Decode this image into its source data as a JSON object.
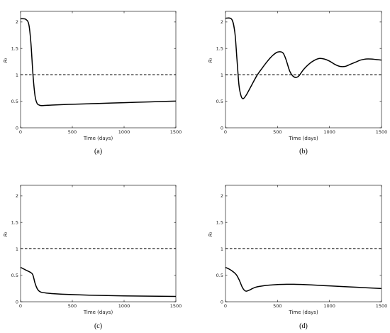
{
  "chart_data": [
    {
      "type": "line",
      "panel_label": "(a)",
      "xlabel": "Time (days)",
      "ylabel": "Rₜ",
      "xlim": [
        0,
        1500
      ],
      "ylim": [
        0,
        2.2
      ],
      "xticks": [
        "0",
        "500",
        "1000",
        "1500"
      ],
      "yticks": [
        "0",
        "0.5",
        "1",
        "1.5",
        "2"
      ],
      "reference_line": {
        "y": 1,
        "style": "dashed"
      },
      "series": [
        {
          "x": [
            0,
            50,
            80,
            100,
            120,
            140,
            160,
            180,
            200,
            250,
            300,
            500,
            750,
            1000,
            1250,
            1500
          ],
          "values": [
            2.06,
            2.05,
            1.95,
            1.6,
            1.0,
            0.6,
            0.46,
            0.43,
            0.42,
            0.425,
            0.43,
            0.445,
            0.46,
            0.475,
            0.49,
            0.505
          ]
        }
      ]
    },
    {
      "type": "line",
      "panel_label": "(b)",
      "xlabel": "Time (days)",
      "ylabel": "Rₜ",
      "xlim": [
        0,
        1500
      ],
      "ylim": [
        0,
        2.2
      ],
      "xticks": [
        "0",
        "500",
        "1000",
        "1500"
      ],
      "yticks": [
        "0",
        "0.5",
        "1",
        "1.5",
        "2"
      ],
      "reference_line": {
        "y": 1,
        "style": "dashed"
      },
      "series": [
        {
          "x": [
            0,
            60,
            90,
            110,
            130,
            150,
            170,
            200,
            250,
            300,
            350,
            400,
            450,
            500,
            550,
            580,
            620,
            660,
            700,
            750,
            800,
            850,
            900,
            950,
            1000,
            1050,
            1100,
            1150,
            1200,
            1250,
            1300,
            1350,
            1400,
            1450,
            1500
          ],
          "values": [
            2.07,
            2.05,
            1.8,
            1.3,
            0.8,
            0.6,
            0.55,
            0.62,
            0.8,
            0.98,
            1.12,
            1.25,
            1.36,
            1.43,
            1.42,
            1.3,
            1.06,
            0.96,
            0.97,
            1.1,
            1.2,
            1.27,
            1.31,
            1.3,
            1.26,
            1.2,
            1.16,
            1.16,
            1.2,
            1.24,
            1.28,
            1.3,
            1.3,
            1.29,
            1.28
          ]
        }
      ]
    },
    {
      "type": "line",
      "panel_label": "(c)",
      "xlabel": "Time (days)",
      "ylabel": "Rₜ",
      "xlim": [
        0,
        1500
      ],
      "ylim": [
        0,
        2.2
      ],
      "xticks": [
        "0",
        "500",
        "1000",
        "1500"
      ],
      "yticks": [
        "0",
        "0.5",
        "1",
        "1.5",
        "2"
      ],
      "reference_line": {
        "y": 1,
        "style": "dashed"
      },
      "series": [
        {
          "x": [
            0,
            50,
            100,
            120,
            140,
            160,
            180,
            200,
            250,
            300,
            500,
            750,
            1000,
            1250,
            1500
          ],
          "values": [
            0.65,
            0.6,
            0.55,
            0.5,
            0.35,
            0.25,
            0.2,
            0.18,
            0.165,
            0.155,
            0.135,
            0.12,
            0.11,
            0.105,
            0.1
          ]
        }
      ]
    },
    {
      "type": "line",
      "panel_label": "(d)",
      "xlabel": "Time (days)",
      "ylabel": "Rₜ",
      "xlim": [
        0,
        1500
      ],
      "ylim": [
        0,
        2.2
      ],
      "xticks": [
        "0",
        "500",
        "1000",
        "1500"
      ],
      "yticks": [
        "0",
        "0.5",
        "1",
        "1.5",
        "2"
      ],
      "reference_line": {
        "y": 1,
        "style": "dashed"
      },
      "series": [
        {
          "x": [
            0,
            50,
            100,
            130,
            160,
            180,
            200,
            230,
            260,
            300,
            400,
            500,
            600,
            650,
            750,
            900,
            1000,
            1200,
            1400,
            1500
          ],
          "values": [
            0.65,
            0.6,
            0.52,
            0.42,
            0.28,
            0.22,
            0.2,
            0.22,
            0.25,
            0.28,
            0.31,
            0.325,
            0.33,
            0.33,
            0.325,
            0.31,
            0.3,
            0.28,
            0.26,
            0.25
          ]
        }
      ]
    }
  ]
}
